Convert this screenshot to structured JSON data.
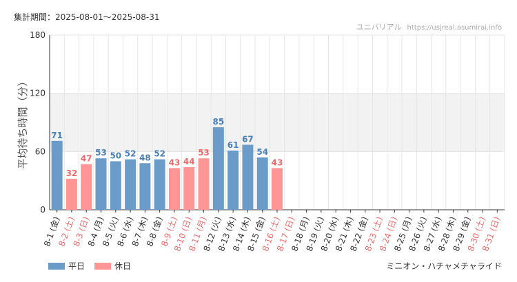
{
  "header": {
    "period_label": "集計期間：2025-08-01～2025-08-31",
    "site_name": "ユニバリアル",
    "site_url": "https://usjreal.asumirai.info"
  },
  "attraction_name": "ミニオン・ハチャメチャライド",
  "colors": {
    "weekday": "#6b9bc8",
    "holiday": "#ff9696",
    "weekday_label": "#4a7fb5",
    "holiday_label": "#ee6b6b",
    "band": "#f2f2f2",
    "grid": "#e6e6e6",
    "axis": "#333333"
  },
  "chart_data": {
    "type": "bar",
    "ylabel": "平均待ち時間（分）",
    "ylim": [
      0,
      180
    ],
    "yticks": [
      0,
      60,
      120,
      180
    ],
    "band": [
      60,
      120
    ],
    "legend_position": "bottom-left",
    "series": [
      {
        "name": "平日",
        "color_key": "weekday"
      },
      {
        "name": "休日",
        "color_key": "holiday"
      }
    ],
    "categories": [
      "8-1 (金)",
      "8-2 (土)",
      "8-3 (日)",
      "8-4 (月)",
      "8-5 (火)",
      "8-6 (水)",
      "8-7 (木)",
      "8-8 (金)",
      "8-9 (土)",
      "8-10 (日)",
      "8-11 (月)",
      "8-12 (火)",
      "8-13 (水)",
      "8-14 (木)",
      "8-15 (金)",
      "8-16 (土)",
      "8-17 (日)",
      "8-18 (月)",
      "8-19 (火)",
      "8-20 (水)",
      "8-21 (木)",
      "8-22 (金)",
      "8-23 (土)",
      "8-24 (日)",
      "8-25 (月)",
      "8-26 (火)",
      "8-27 (水)",
      "8-28 (木)",
      "8-29 (金)",
      "8-30 (土)",
      "8-31 (日)"
    ],
    "day_type": [
      "weekday",
      "holiday",
      "holiday",
      "weekday",
      "weekday",
      "weekday",
      "weekday",
      "weekday",
      "holiday",
      "holiday",
      "holiday",
      "weekday",
      "weekday",
      "weekday",
      "weekday",
      "holiday",
      "holiday",
      "weekday",
      "weekday",
      "weekday",
      "weekday",
      "weekday",
      "holiday",
      "holiday",
      "weekday",
      "weekday",
      "weekday",
      "weekday",
      "weekday",
      "holiday",
      "holiday"
    ],
    "values": [
      71,
      32,
      47,
      53,
      50,
      52,
      48,
      52,
      43,
      44,
      53,
      85,
      61,
      67,
      54,
      43,
      null,
      null,
      null,
      null,
      null,
      null,
      null,
      null,
      null,
      null,
      null,
      null,
      null,
      null,
      null
    ]
  }
}
